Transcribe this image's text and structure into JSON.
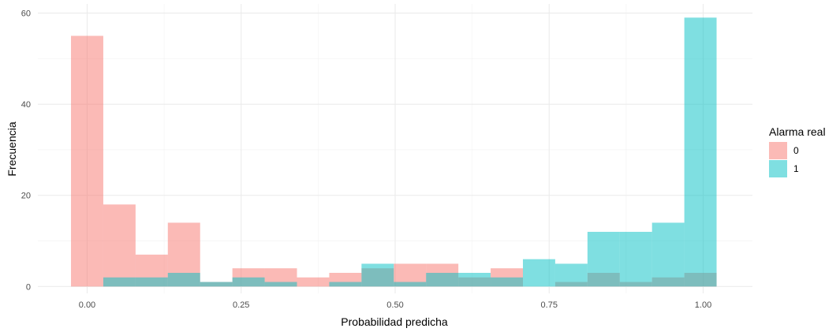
{
  "chart_data": {
    "type": "bar",
    "subtype": "overlapping-histogram",
    "xlabel": "Probabilidad predicha",
    "ylabel": "Frecuencia",
    "xlim": [
      -0.08,
      1.08
    ],
    "ylim": [
      -1.5,
      62
    ],
    "x_ticks": [
      0,
      0.25,
      0.5,
      0.75,
      1
    ],
    "x_tick_labels": [
      "0.00",
      "0.25",
      "0.50",
      "0.75",
      "1.00"
    ],
    "y_ticks": [
      0,
      20,
      40,
      60
    ],
    "y_tick_labels": [
      "0",
      "20",
      "40",
      "60"
    ],
    "grid": true,
    "bin_edges": [
      -0.0262,
      0.0262,
      0.0786,
      0.131,
      0.1834,
      0.2358,
      0.2882,
      0.3406,
      0.393,
      0.4454,
      0.4978,
      0.5502,
      0.6026,
      0.655,
      0.7074,
      0.7598,
      0.8122,
      0.8646,
      0.917,
      0.9694,
      1.0218
    ],
    "series": [
      {
        "name": "0",
        "color": "#F8766D",
        "opacity": 0.5,
        "values": [
          55,
          18,
          7,
          14,
          1,
          4,
          4,
          2,
          3,
          4,
          5,
          5,
          2,
          4,
          0,
          1,
          3,
          1,
          2,
          3
        ]
      },
      {
        "name": "1",
        "color": "#00BFC4",
        "opacity": 0.5,
        "values": [
          0,
          2,
          2,
          3,
          1,
          2,
          1,
          0,
          1,
          5,
          1,
          3,
          3,
          2,
          6,
          5,
          12,
          12,
          14,
          59
        ]
      }
    ],
    "legend": {
      "title": "Alarma real",
      "position": "right",
      "entries": [
        {
          "label": "0",
          "color": "#F8766D"
        },
        {
          "label": "1",
          "color": "#00BFC4"
        }
      ]
    }
  }
}
